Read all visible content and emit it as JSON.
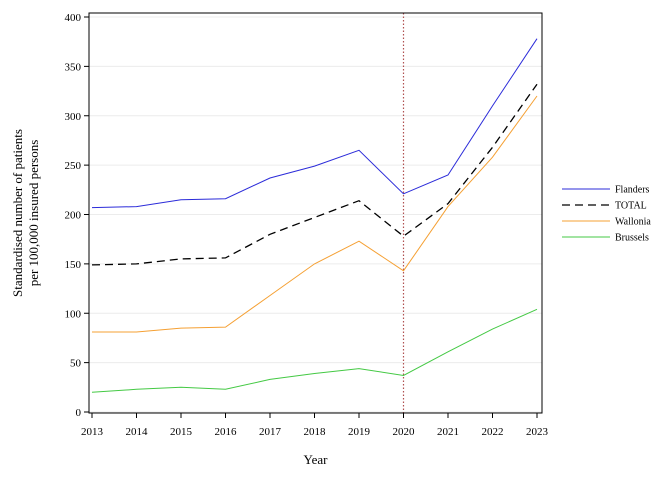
{
  "chart_data": {
    "type": "line",
    "title": "",
    "xlabel": "Year",
    "ylabel": [
      "Standardised number of patients",
      "per 100,000 insured persons"
    ],
    "x": [
      2013,
      2014,
      2015,
      2016,
      2017,
      2018,
      2019,
      2020,
      2021,
      2022,
      2023
    ],
    "xticks": [
      "2013",
      "2014",
      "2015",
      "2016",
      "2017",
      "2018",
      "2019",
      "2020",
      "2021",
      "2022",
      "2023"
    ],
    "ylim": [
      0,
      400
    ],
    "yticks": [
      "0",
      "50",
      "100",
      "150",
      "200",
      "250",
      "300",
      "350",
      "400"
    ],
    "grid": "horizontal",
    "reference_line_x": 2020,
    "legend_position": "right",
    "series": [
      {
        "name": "Flanders",
        "color": "#2b2bd9",
        "dash": "solid",
        "values": [
          207,
          208,
          215,
          216,
          237,
          249,
          265,
          221,
          240,
          310,
          378
        ]
      },
      {
        "name": "TOTAL",
        "color": "#000000",
        "dash": "dashed",
        "values": [
          149,
          150,
          155,
          156,
          180,
          197,
          214,
          178,
          211,
          268,
          332
        ]
      },
      {
        "name": "Wallonia",
        "color": "#f5a033",
        "dash": "solid",
        "values": [
          81,
          81,
          85,
          86,
          118,
          150,
          173,
          143,
          208,
          258,
          320
        ]
      },
      {
        "name": "Brussels",
        "color": "#44c944",
        "dash": "solid",
        "values": [
          20,
          23,
          25,
          23,
          33,
          39,
          44,
          37,
          61,
          84,
          104
        ]
      }
    ]
  }
}
